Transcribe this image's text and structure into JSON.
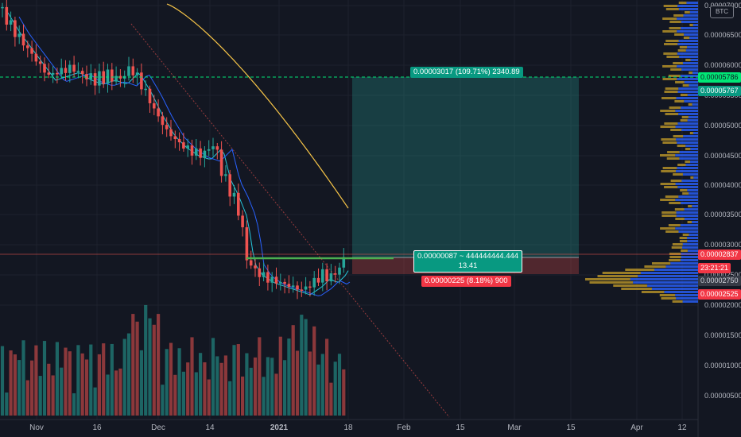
{
  "currency_badge": "BTC",
  "price_axis": {
    "ticks": [
      "0.00007000",
      "0.00006500",
      "0.00006000",
      "0.00005500",
      "0.00005000",
      "0.00004500",
      "0.00004000",
      "0.00003500",
      "0.00003000",
      "0.00002500",
      "0.00002000"
    ],
    "volume_ticks": [
      "0.00001500",
      "0.00001000",
      "0.00000500"
    ]
  },
  "time_axis": [
    "Nov",
    "16",
    "Dec",
    "14",
    "2021",
    "18",
    "Feb",
    "15",
    "Mar",
    "15",
    "Apr",
    "12"
  ],
  "price_labels": {
    "target": "0.00005786",
    "target_color": "#00e676",
    "ask": "0.00005767",
    "ask_color": "#089981",
    "current": "0.00002837",
    "current_color": "#f23645",
    "countdown": "23:21:21",
    "level_b": "0.00002750",
    "level_b_color": "#363a45",
    "stop": "0.00002525",
    "stop_color": "#f23645"
  },
  "long_position": {
    "target_text": "0.00003017 (109.71%) 2340.89",
    "entry_text_line1": "0.00000087 ~ 444444444.444",
    "entry_text_line2": "13.41",
    "stop_text": "0.00000225 (8.18%) 900",
    "profit_color": "#089981",
    "loss_color": "#f23645"
  },
  "colors": {
    "up": "#26a69a",
    "down": "#ef5350",
    "ma_fast": "#2962ff",
    "ma_slow": "#26c6da",
    "ma_long": "#f7c548",
    "volume_profile_up": "#2962ff",
    "volume_profile_down": "#c8a02a"
  }
}
